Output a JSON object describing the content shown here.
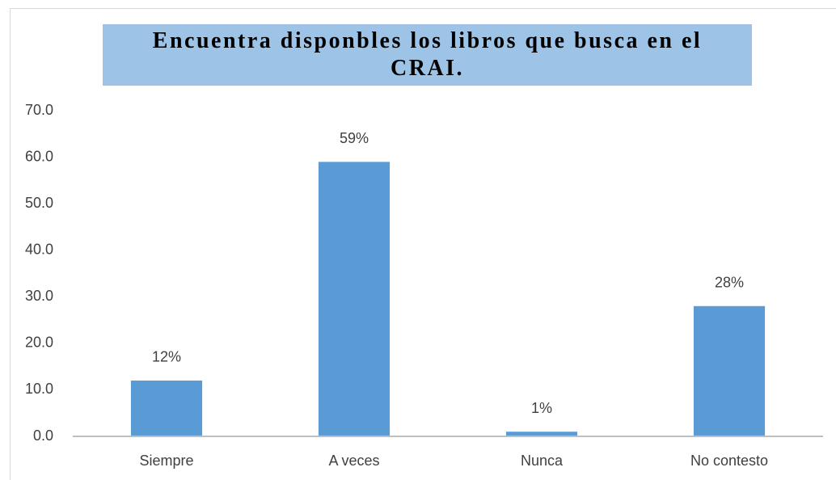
{
  "chart_data": {
    "type": "bar",
    "title": "Encuentra disponbles los libros que busca en el CRAI.",
    "categories": [
      "Siempre",
      "A veces",
      "Nunca",
      "No contesto"
    ],
    "values": [
      12,
      59,
      1,
      28
    ],
    "value_labels": [
      "12%",
      "59%",
      "1%",
      "28%"
    ],
    "color": "#5b9bd5",
    "ylim": [
      0,
      70
    ],
    "yticks": [
      {
        "value": 0,
        "label": "0.0"
      },
      {
        "value": 10,
        "label": "10.0"
      },
      {
        "value": 20,
        "label": "20.0"
      },
      {
        "value": 30,
        "label": "30.0"
      },
      {
        "value": 40,
        "label": "40.0"
      },
      {
        "value": 50,
        "label": "50.0"
      },
      {
        "value": 60,
        "label": "60.0"
      },
      {
        "value": 70,
        "label": "70.0"
      }
    ],
    "grid": false
  }
}
